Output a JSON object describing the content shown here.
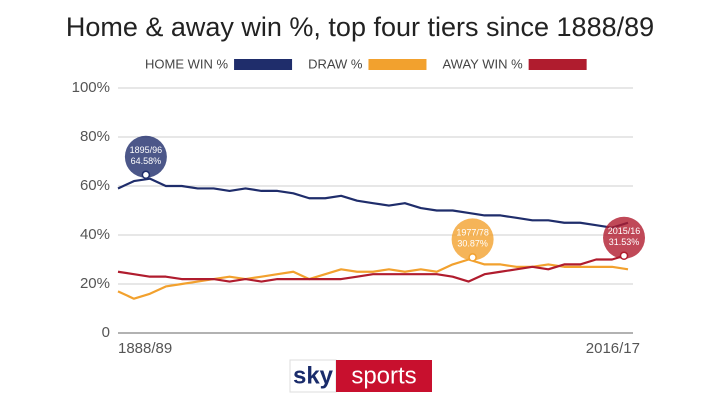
{
  "chart_data": {
    "type": "line",
    "title": "Home & away win %, top four tiers since 1888/89",
    "categories": [
      "1888/89",
      null,
      null,
      null,
      null,
      null,
      null,
      null,
      null,
      null,
      null,
      null,
      null,
      null,
      null,
      null,
      null,
      null,
      null,
      null,
      null,
      null,
      null,
      null,
      null,
      null,
      null,
      null,
      null,
      null,
      null,
      null,
      "2016/17"
    ],
    "series": [
      {
        "name": "HOME WIN %",
        "color": "#1f2d6b",
        "values": [
          59,
          62,
          63,
          60,
          60,
          59,
          59,
          58,
          59,
          58,
          58,
          57,
          55,
          55,
          56,
          54,
          53,
          52,
          53,
          51,
          50,
          50,
          49,
          48,
          48,
          47,
          46,
          46,
          45,
          45,
          44,
          43,
          45
        ]
      },
      {
        "name": "DRAW %",
        "color": "#f2a12e",
        "values": [
          17,
          14,
          16,
          19,
          20,
          21,
          22,
          23,
          22,
          23,
          24,
          25,
          22,
          24,
          26,
          25,
          25,
          26,
          25,
          26,
          25,
          28,
          30,
          28,
          28,
          27,
          27,
          28,
          27,
          27,
          27,
          27,
          26
        ]
      },
      {
        "name": "AWAY WIN %",
        "color": "#b01c2e",
        "values": [
          25,
          24,
          23,
          23,
          22,
          22,
          22,
          21,
          22,
          21,
          22,
          22,
          22,
          22,
          22,
          23,
          24,
          24,
          24,
          24,
          24,
          23,
          21,
          24,
          25,
          26,
          27,
          26,
          28,
          28,
          30,
          30,
          32
        ]
      }
    ],
    "annotations": [
      {
        "season": "1895/96",
        "series": 0,
        "value": 64.58,
        "value_label": "64.58%"
      },
      {
        "season": "1977/78",
        "series": 1,
        "value": 30.87,
        "value_label": "30.87%"
      },
      {
        "season": "2015/16",
        "series": 2,
        "value": 31.53,
        "value_label": "31.53%"
      }
    ],
    "ylim": [
      0,
      100
    ],
    "yticks": [
      0,
      {
        "value": 20,
        "label": "20%"
      },
      {
        "value": 40,
        "label": "40%"
      },
      {
        "value": 60,
        "label": "60%"
      },
      {
        "value": 80,
        "label": "80%"
      },
      {
        "value": 100,
        "label": "100%"
      }
    ],
    "grid": true,
    "logo": {
      "left": "sky",
      "right": "sports"
    }
  }
}
